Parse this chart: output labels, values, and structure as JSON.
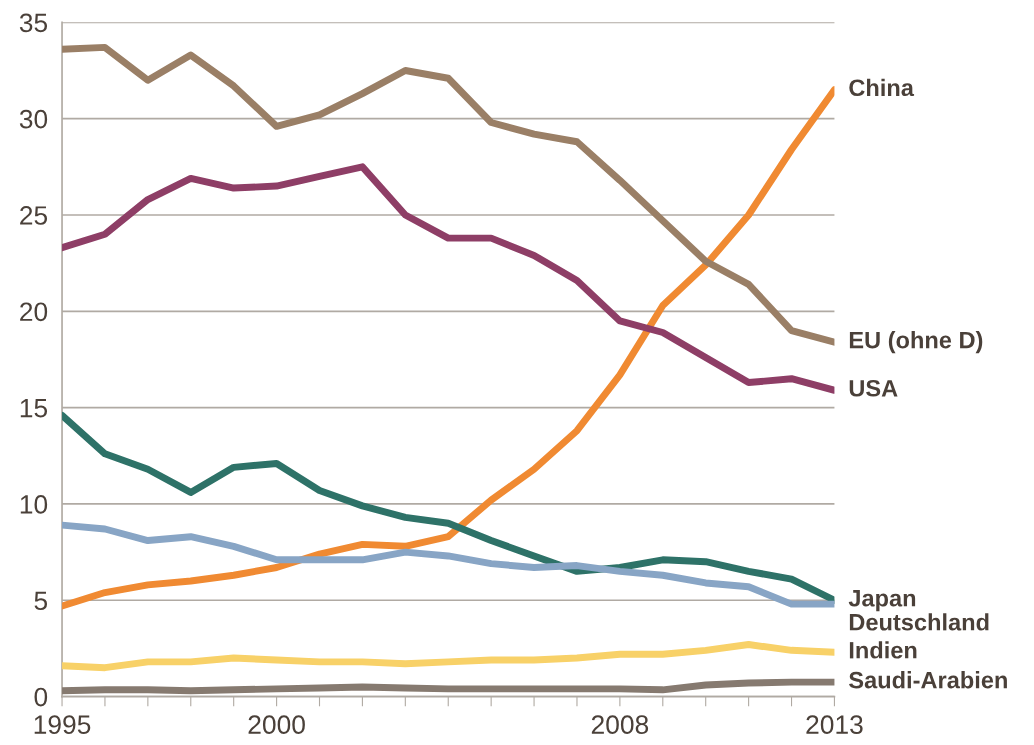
{
  "chart_data": {
    "type": "line",
    "x": [
      1995,
      1996,
      1997,
      1998,
      1999,
      2000,
      2001,
      2002,
      2003,
      2004,
      2005,
      2006,
      2007,
      2008,
      2009,
      2010,
      2011,
      2012,
      2013
    ],
    "series": [
      {
        "name": "China",
        "color": "#f08a32",
        "values": [
          4.7,
          5.4,
          5.8,
          6.0,
          6.3,
          6.7,
          7.4,
          7.9,
          7.8,
          8.3,
          10.2,
          11.8,
          13.8,
          16.7,
          20.3,
          22.4,
          25.0,
          28.4,
          31.5
        ]
      },
      {
        "name": "EU (ohne D)",
        "color": "#9a7f66",
        "values": [
          33.6,
          33.7,
          32.0,
          33.3,
          31.7,
          29.6,
          30.2,
          31.3,
          32.5,
          32.1,
          29.8,
          29.2,
          28.8,
          26.8,
          24.7,
          22.6,
          21.4,
          19.0,
          18.4
        ]
      },
      {
        "name": "USA",
        "color": "#8e3e66",
        "values": [
          23.3,
          24.0,
          25.8,
          26.9,
          26.4,
          26.5,
          27.0,
          27.5,
          25.0,
          23.8,
          23.8,
          22.9,
          21.6,
          19.5,
          18.9,
          17.6,
          16.3,
          16.5,
          15.9
        ]
      },
      {
        "name": "Japan",
        "color": "#2e7268",
        "values": [
          14.6,
          12.6,
          11.8,
          10.6,
          11.9,
          12.1,
          10.7,
          9.9,
          9.3,
          9.0,
          8.1,
          7.3,
          6.5,
          6.7,
          7.1,
          7.0,
          6.5,
          6.1,
          5.0
        ]
      },
      {
        "name": "Deutschland",
        "color": "#88a5c5",
        "values": [
          8.9,
          8.7,
          8.1,
          8.3,
          7.8,
          7.1,
          7.1,
          7.1,
          7.5,
          7.3,
          6.9,
          6.7,
          6.8,
          6.5,
          6.3,
          5.9,
          5.7,
          4.8,
          4.8
        ]
      },
      {
        "name": "Indien",
        "color": "#f8d168",
        "values": [
          1.6,
          1.5,
          1.8,
          1.8,
          2.0,
          1.9,
          1.8,
          1.8,
          1.7,
          1.8,
          1.9,
          1.9,
          2.0,
          2.2,
          2.2,
          2.4,
          2.7,
          2.4,
          2.3
        ]
      },
      {
        "name": "Saudi-Arabien",
        "color": "#867a70",
        "values": [
          0.3,
          0.35,
          0.35,
          0.3,
          0.35,
          0.4,
          0.45,
          0.5,
          0.45,
          0.4,
          0.4,
          0.4,
          0.4,
          0.4,
          0.35,
          0.6,
          0.7,
          0.75,
          0.75
        ]
      }
    ],
    "xlim": [
      1995,
      2013
    ],
    "xticks": [
      1995,
      {
        "value": 1996,
        "label": null
      },
      {
        "value": 1997,
        "label": null
      },
      {
        "value": 1998,
        "label": null
      },
      {
        "value": 1999,
        "label": null
      },
      2000,
      {
        "value": 2001,
        "label": null
      },
      {
        "value": 2002,
        "label": null
      },
      {
        "value": 2003,
        "label": null
      },
      {
        "value": 2004,
        "label": null
      },
      {
        "value": 2005,
        "label": null
      },
      {
        "value": 2006,
        "label": null
      },
      {
        "value": 2007,
        "label": null
      },
      2008,
      {
        "value": 2009,
        "label": null
      },
      {
        "value": 2010,
        "label": null
      },
      {
        "value": 2011,
        "label": null
      },
      {
        "value": 2012,
        "label": null
      },
      2013
    ],
    "ylim": [
      0,
      35
    ],
    "yticks": [
      0,
      5,
      10,
      15,
      20,
      25,
      30,
      35
    ],
    "grid": "y",
    "legend": false,
    "marker": "none",
    "line_style": "solid"
  }
}
